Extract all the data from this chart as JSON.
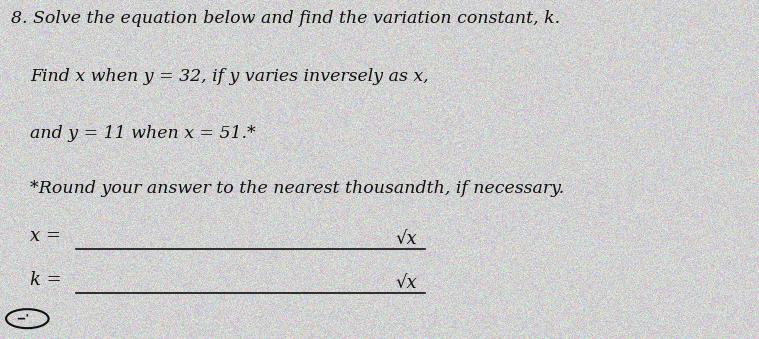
{
  "background_color": "#c8c8c8",
  "paper_color": "#e8e8e8",
  "line1": "8. Solve the equation below and find the variation constant, k.",
  "line2": "Find x when y = 32, if y varies inversely as x,",
  "line3": "and y = 11 when x = 51.*",
  "line4": "*Round your answer to the nearest thousandth, if necessary.",
  "label_x": "x =",
  "label_k": "k =",
  "sqrt_label": "√x",
  "text_color": "#111111",
  "font_size_main": 12.5,
  "font_size_labels": 13,
  "font_size_sqrt": 13
}
